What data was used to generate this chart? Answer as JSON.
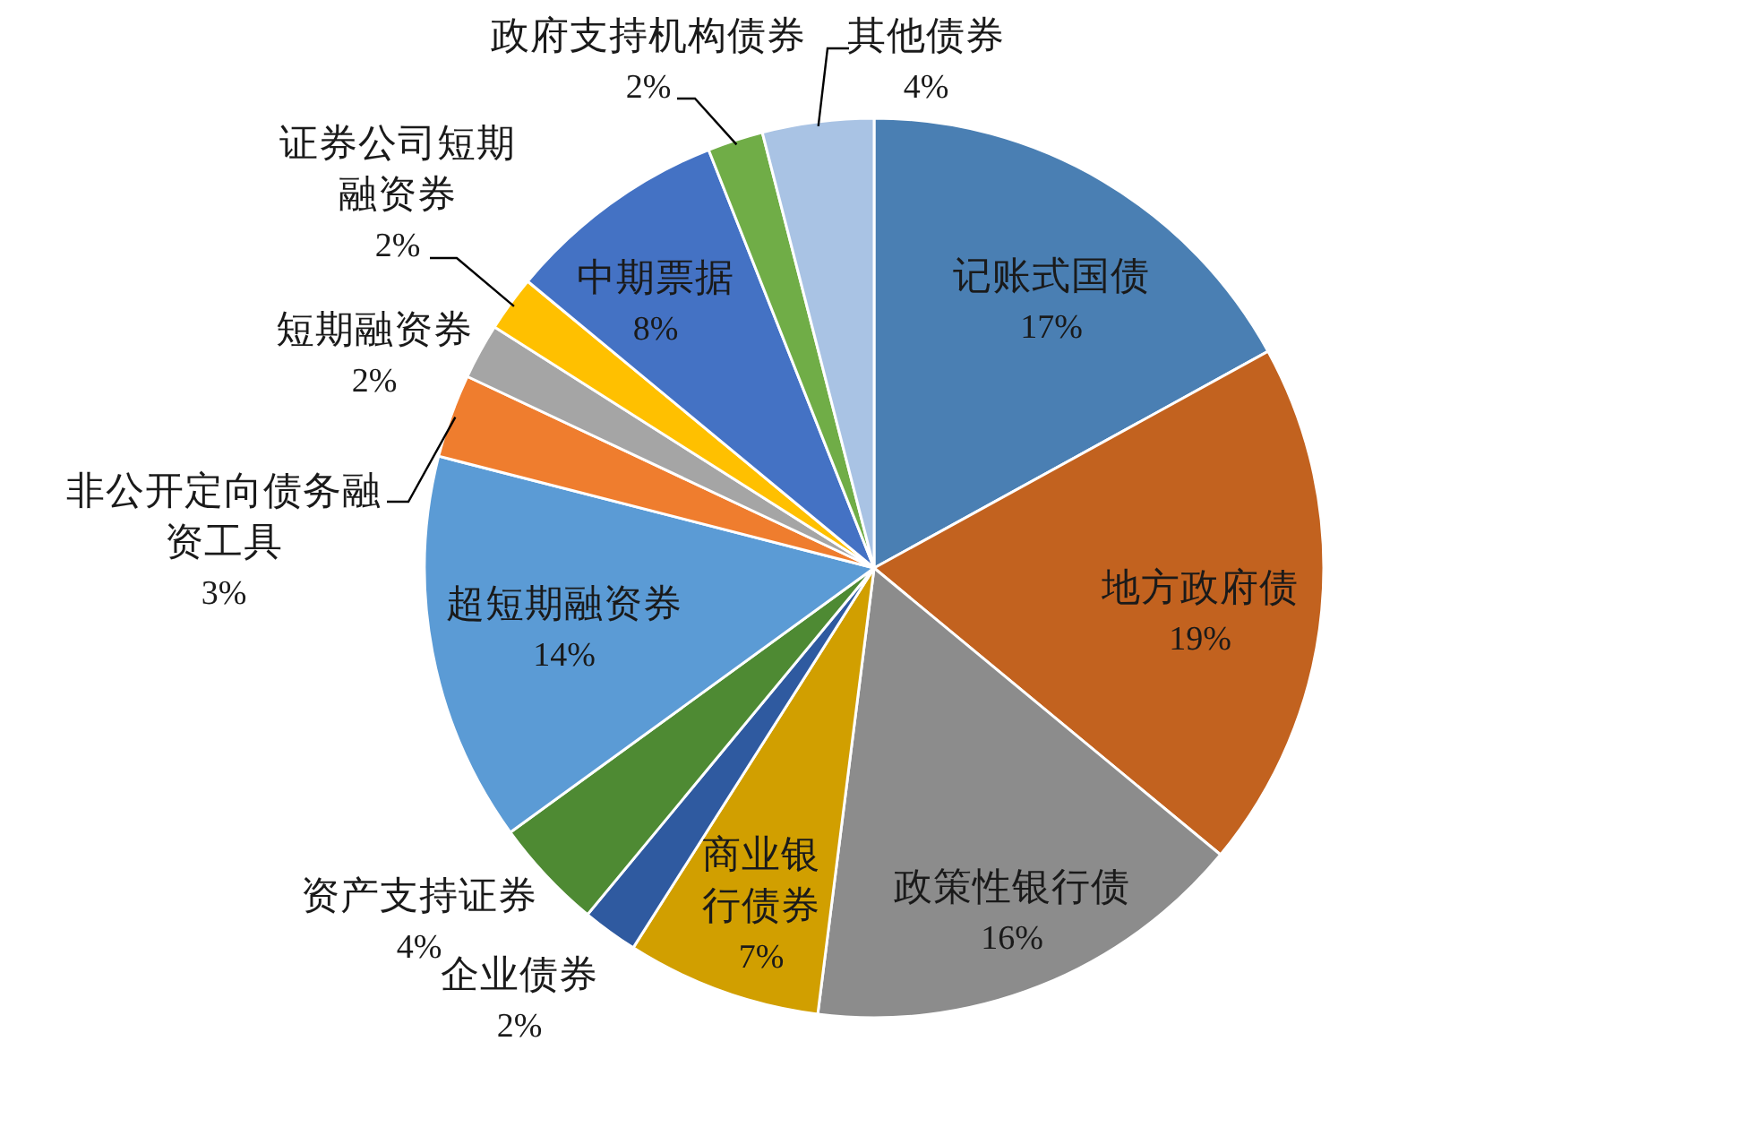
{
  "chart_data": {
    "type": "pie",
    "categories": [
      "记账式国债",
      "地方政府债",
      "政策性银行债",
      "商业银行债券",
      "企业债券",
      "资产支持证券",
      "超短期融资券",
      "非公开定向债务融资工具",
      "短期融资券",
      "证券公司短期融资券",
      "中期票据",
      "政府支持机构债券",
      "其他债券"
    ],
    "values": [
      17,
      19,
      16,
      7,
      2,
      4,
      14,
      3,
      2,
      2,
      8,
      2,
      4
    ],
    "colors": [
      "#4a7fb3",
      "#c2621f",
      "#8c8c8c",
      "#d19f00",
      "#2f5aa0",
      "#4e8a33",
      "#5b9bd5",
      "#ef7d2e",
      "#a5a5a5",
      "#ffc000",
      "#4472c4",
      "#70ad47",
      "#a9c3e4"
    ],
    "value_labels": [
      "17%",
      "19%",
      "16%",
      "7%",
      "2%",
      "4%",
      "14%",
      "3%",
      "2%",
      "2%",
      "8%",
      "2%",
      "4%"
    ]
  }
}
